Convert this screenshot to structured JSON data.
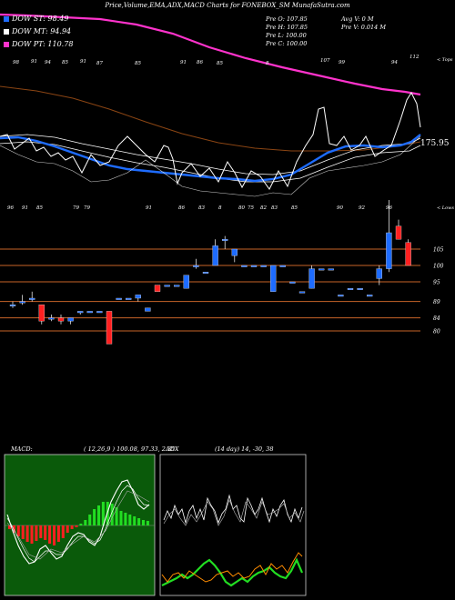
{
  "title": "Price,Volume,EMA,ADX,MACD Charts for FONEBOX_SM MunafaSutra.com",
  "legend": [
    {
      "label": "DOW ST: 98.49",
      "color": "#1e6cff"
    },
    {
      "label": "DOW MT: 94.94",
      "color": "#ffffff"
    },
    {
      "label": "DOW PT: 110.78",
      "color": "#ff33cc"
    }
  ],
  "ohlc": {
    "open": "Pre   O: 107.85",
    "high": "Pre   H: 107.85",
    "low": "Pre   L: 100.00",
    "close": "Pre   C: 100.00",
    "avg_volume": "Avg V: 0  M",
    "volume": "Pre   V: 0.014  M"
  },
  "price_panel": {
    "last_label": "175.95",
    "right_tag_top": "< Tops",
    "right_tag_bottom": "< Lows",
    "top_tick_labels": [
      "98",
      "91",
      "94",
      "85",
      "91",
      "87",
      "85",
      "91",
      "86",
      "85",
      "8",
      "107",
      "99",
      "94",
      "112"
    ],
    "bottom_tick_labels": [
      "96",
      "91",
      "85",
      "79",
      "79",
      "91",
      "86",
      "83",
      "8",
      "80",
      "75",
      "82",
      "83",
      "85",
      "90",
      "92",
      "96"
    ],
    "price_levels": [
      "105",
      "100",
      "95",
      "89",
      "84",
      "80"
    ]
  },
  "macd": {
    "label": "MACD:",
    "params": "( 12,26,9 ) 100.08, 97.33, 2.35"
  },
  "adx": {
    "label": "ADX",
    "params": "(14  day) 14,  -30,  38"
  },
  "colors": {
    "up": "#1e6cff",
    "down": "#ff2020",
    "ema_long": "#ff33cc",
    "ema_mid": "#8b4513",
    "grid": "#c86428",
    "macd_panel": "#0a5a0a",
    "adx_di_plus": "#22dd22",
    "adx_di_minus": "#ff8c00"
  },
  "chart_data": {
    "type": "candlestick",
    "candles": [
      {
        "o": 88,
        "c": 88,
        "h": 89,
        "l": 87
      },
      {
        "o": 89,
        "c": 89,
        "h": 91,
        "l": 88
      },
      {
        "o": 90,
        "c": 90,
        "h": 92,
        "l": 89
      },
      {
        "o": 88,
        "c": 83,
        "h": 88,
        "l": 82
      },
      {
        "o": 84,
        "c": 84,
        "h": 85,
        "l": 83
      },
      {
        "o": 84,
        "c": 83,
        "h": 85,
        "l": 82
      },
      {
        "o": 83,
        "c": 84,
        "h": 84,
        "l": 82
      },
      {
        "o": 86,
        "c": 86,
        "h": 86,
        "l": 85
      },
      {
        "o": 86,
        "c": 86,
        "h": 86,
        "l": 86
      },
      {
        "o": 86,
        "c": 86,
        "h": 86,
        "l": 86
      },
      {
        "o": 86,
        "c": 76,
        "h": 86,
        "l": 76
      },
      {
        "o": 90,
        "c": 90,
        "h": 90,
        "l": 90
      },
      {
        "o": 90,
        "c": 90,
        "h": 90,
        "l": 90
      },
      {
        "o": 90,
        "c": 91,
        "h": 91,
        "l": 89
      },
      {
        "o": 86,
        "c": 87,
        "h": 87,
        "l": 86
      },
      {
        "o": 94,
        "c": 92,
        "h": 94,
        "l": 92
      },
      {
        "o": 94,
        "c": 94,
        "h": 94,
        "l": 94
      },
      {
        "o": 94,
        "c": 94,
        "h": 94,
        "l": 94
      },
      {
        "o": 93,
        "c": 97,
        "h": 97,
        "l": 93
      },
      {
        "o": 100,
        "c": 100,
        "h": 102,
        "l": 99
      },
      {
        "o": 98,
        "c": 98,
        "h": 98,
        "l": 98
      },
      {
        "o": 100,
        "c": 106,
        "h": 108,
        "l": 100
      },
      {
        "o": 108,
        "c": 108,
        "h": 109,
        "l": 105
      },
      {
        "o": 103,
        "c": 105,
        "h": 105,
        "l": 101
      },
      {
        "o": 100,
        "c": 100,
        "h": 100,
        "l": 100
      },
      {
        "o": 100,
        "c": 100,
        "h": 100,
        "l": 100
      },
      {
        "o": 100,
        "c": 100,
        "h": 100,
        "l": 100
      },
      {
        "o": 92,
        "c": 100,
        "h": 100,
        "l": 92
      },
      {
        "o": 100,
        "c": 100,
        "h": 100,
        "l": 100
      },
      {
        "o": 95,
        "c": 95,
        "h": 95,
        "l": 95
      },
      {
        "o": 92,
        "c": 92,
        "h": 92,
        "l": 92
      },
      {
        "o": 93,
        "c": 99,
        "h": 100,
        "l": 93
      },
      {
        "o": 99,
        "c": 99,
        "h": 99,
        "l": 99
      },
      {
        "o": 99,
        "c": 99,
        "h": 99,
        "l": 99
      },
      {
        "o": 91,
        "c": 91,
        "h": 91,
        "l": 91
      },
      {
        "o": 93,
        "c": 93,
        "h": 93,
        "l": 93
      },
      {
        "o": 93,
        "c": 93,
        "h": 93,
        "l": 93
      },
      {
        "o": 91,
        "c": 91,
        "h": 91,
        "l": 91
      },
      {
        "o": 96,
        "c": 99,
        "h": 100,
        "l": 94
      },
      {
        "o": 99,
        "c": 110,
        "h": 120,
        "l": 98
      },
      {
        "o": 112,
        "c": 108,
        "h": 114,
        "l": 108
      },
      {
        "o": 107,
        "c": 100,
        "h": 108,
        "l": 100
      }
    ]
  }
}
